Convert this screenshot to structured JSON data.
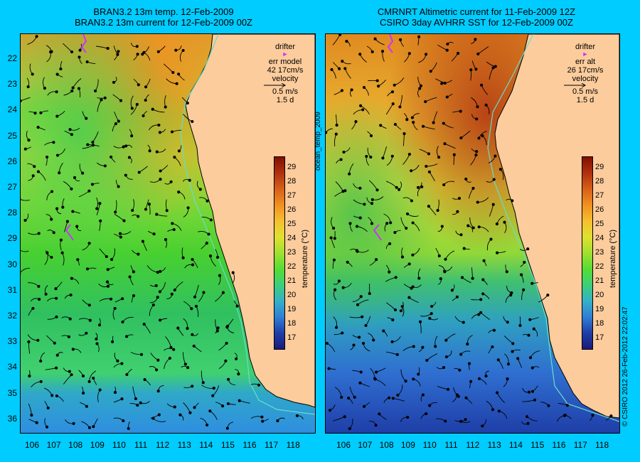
{
  "left_panel": {
    "title_line1": "BRAN3.2 13m temp. 12-Feb-2009",
    "title_line2": "BRAN3.2 13m current for 12-Feb-2009 00Z",
    "legend": {
      "drifter_label": "drifter",
      "err_label": "err model",
      "err_value": "42 17cm/s",
      "velocity_label": "velocity",
      "velocity_scale": "0.5 m/s",
      "duration": "1.5 d"
    }
  },
  "right_panel": {
    "title_line1": "CMRNRT Altimetric current for 11-Feb-2009 12Z",
    "title_line2": "CSIRO 3day AVHRR SST for 12-Feb-2009 00Z",
    "legend": {
      "drifter_label": "drifter",
      "err_label": "err alt",
      "err_value": "26 17cm/s",
      "velocity_label": "velocity",
      "velocity_scale": "0.5 m/s",
      "duration": "1.5 d"
    }
  },
  "map": {
    "lat_labels": [
      "22",
      "23",
      "24",
      "25",
      "26",
      "27",
      "28",
      "29",
      "30",
      "31",
      "32",
      "33",
      "34",
      "35",
      "36"
    ],
    "lon_labels": [
      "106",
      "107",
      "108",
      "109",
      "110",
      "111",
      "112",
      "113",
      "114",
      "115",
      "116",
      "117",
      "118"
    ]
  },
  "colorbar": {
    "label": "temperature (°C)",
    "ticks": [
      "29",
      "28",
      "27",
      "26",
      "25",
      "24",
      "23",
      "22",
      "21",
      "20",
      "19",
      "18",
      "17"
    ],
    "colors": [
      "#1a1a7a",
      "#1f3ea8",
      "#2f7fd6",
      "#35b0c8",
      "#3ccf7a",
      "#55dd33",
      "#a0e030",
      "#e0e030",
      "#f5c030",
      "#f09020",
      "#d86018",
      "#b03010",
      "#801000"
    ]
  },
  "side_text": {
    "product": "ocean_temp_2009",
    "credit": "© CSIRO 2012  26-Feb-2012 22:02:47"
  },
  "colors": {
    "background": "#00ccff",
    "land": "#fccc9c",
    "drifter": "#cc33ff",
    "isobath": "#66ddcc"
  }
}
